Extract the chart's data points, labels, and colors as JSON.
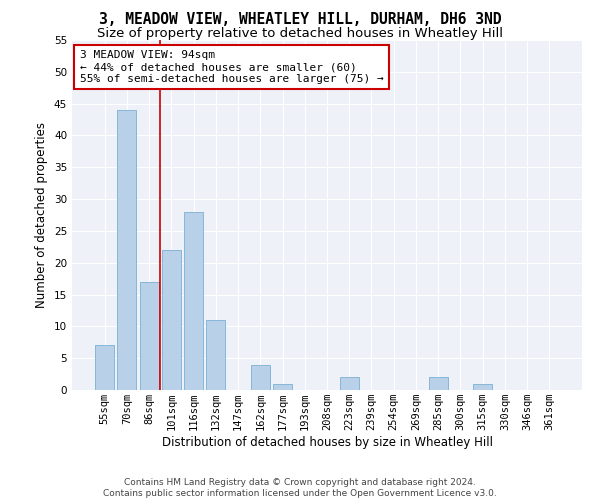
{
  "title": "3, MEADOW VIEW, WHEATLEY HILL, DURHAM, DH6 3ND",
  "subtitle": "Size of property relative to detached houses in Wheatley Hill",
  "xlabel": "Distribution of detached houses by size in Wheatley Hill",
  "ylabel": "Number of detached properties",
  "categories": [
    "55sqm",
    "70sqm",
    "86sqm",
    "101sqm",
    "116sqm",
    "132sqm",
    "147sqm",
    "162sqm",
    "177sqm",
    "193sqm",
    "208sqm",
    "223sqm",
    "239sqm",
    "254sqm",
    "269sqm",
    "285sqm",
    "300sqm",
    "315sqm",
    "330sqm",
    "346sqm",
    "361sqm"
  ],
  "values": [
    7,
    44,
    17,
    22,
    28,
    11,
    0,
    4,
    1,
    0,
    0,
    2,
    0,
    0,
    0,
    2,
    0,
    1,
    0,
    0,
    0
  ],
  "bar_color": "#b8d0e8",
  "bar_edge_color": "#7aafd4",
  "vline_color": "#cc0000",
  "vline_index": 2.5,
  "ylim_max": 55,
  "yticks": [
    0,
    5,
    10,
    15,
    20,
    25,
    30,
    35,
    40,
    45,
    50,
    55
  ],
  "annotation_title": "3 MEADOW VIEW: 94sqm",
  "annotation_line1": "← 44% of detached houses are smaller (60)",
  "annotation_line2": "55% of semi-detached houses are larger (75) →",
  "annotation_box_color": "#cc0000",
  "footer_line1": "Contains HM Land Registry data © Crown copyright and database right 2024.",
  "footer_line2": "Contains public sector information licensed under the Open Government Licence v3.0.",
  "plot_bg_color": "#eef2f8",
  "title_fontsize": 10.5,
  "subtitle_fontsize": 9.5,
  "tick_fontsize": 7.5,
  "label_fontsize": 8.5,
  "annotation_fontsize": 8,
  "footer_fontsize": 6.5
}
